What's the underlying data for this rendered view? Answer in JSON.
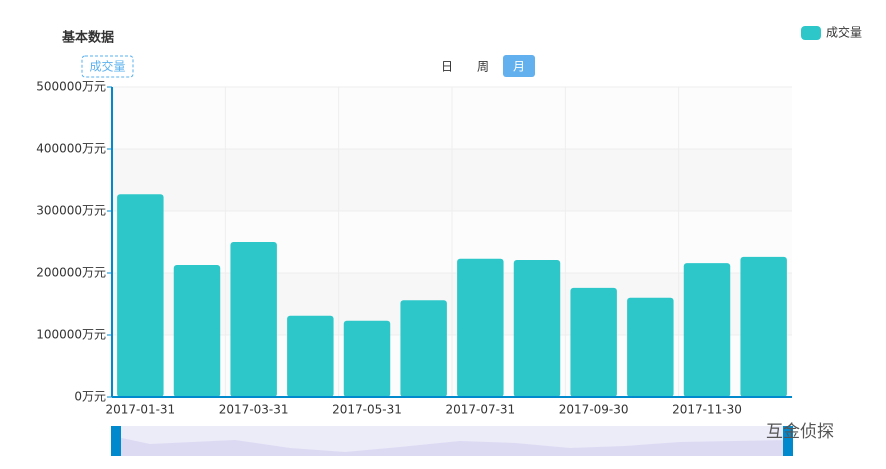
{
  "header": {
    "title": "基本数据",
    "metric_button": "成交量",
    "tabs": [
      "日",
      "周",
      "月"
    ],
    "active_tab": 2
  },
  "watermark": "互金侦探",
  "chart_data": {
    "type": "bar",
    "categories": [
      "2017-01-31",
      null,
      "2017-03-31",
      null,
      "2017-05-31",
      null,
      "2017-07-31",
      null,
      "2017-09-30",
      null,
      "2017-11-30",
      null
    ],
    "series": [
      {
        "name": "成交量",
        "color": "#2ec7c9",
        "values": [
          327000,
          213000,
          250000,
          131000,
          123000,
          156000,
          223000,
          221000,
          176000,
          160000,
          216000,
          226000
        ]
      }
    ],
    "ylim": [
      0,
      500000
    ],
    "yticks": [
      {
        "value": 0,
        "label": "0万元"
      },
      {
        "value": 100000,
        "label": "100000万元"
      },
      {
        "value": 200000,
        "label": "200000万元"
      },
      {
        "value": 300000,
        "label": "300000万元"
      },
      {
        "value": 400000,
        "label": "400000万元"
      },
      {
        "value": 500000,
        "label": "500000万元"
      }
    ],
    "grid": true,
    "legend": "top-right"
  }
}
